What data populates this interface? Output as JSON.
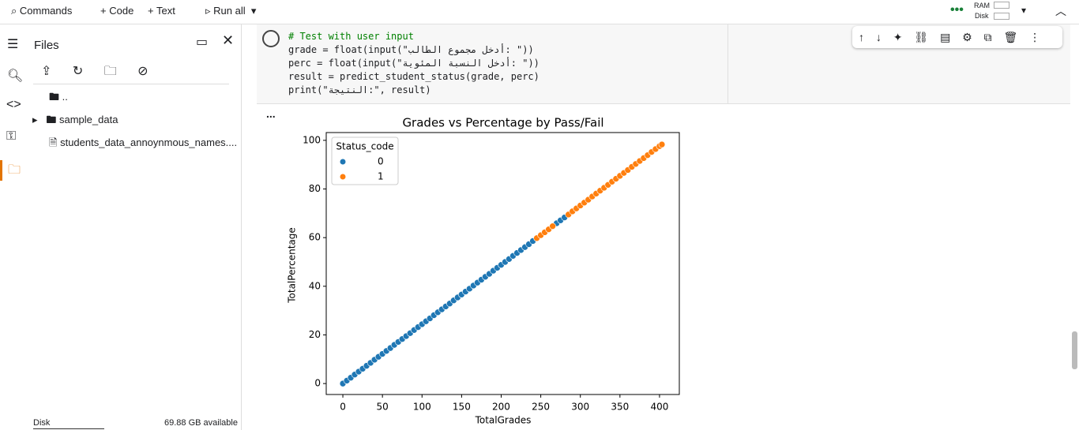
{
  "toolbar": {
    "commands": "Commands",
    "code": "Code",
    "text": "Text",
    "run_all": "Run all",
    "ram": "RAM",
    "disk": "Disk"
  },
  "sidebar": {
    "title": "Files",
    "items": [
      "..",
      "sample_data",
      "students_data_annoynmous_names...."
    ],
    "disk_label": "Disk",
    "disk_available": "69.88 GB available"
  },
  "code": {
    "lines": [
      "# Test with user input",
      "grade = float(input(\"أدخل مجموع الطالب: \"))",
      "perc = float(input(\"أدخل النسبة المئوية: \"))",
      "result = predict_student_status(grade, perc)",
      "print(\"النتيجة:\", result)"
    ]
  },
  "output_menu": "...",
  "chart_data": {
    "type": "scatter",
    "title": "Grades vs Percentage by Pass/Fail",
    "x_label": "TotalGrades",
    "y_label": "TotalPercentage",
    "legend_title": "Status_code",
    "legend_position": "upper left",
    "xlim": [
      -21,
      425
    ],
    "ylim": [
      -4.5,
      103.2
    ],
    "xticks": [
      0,
      50,
      100,
      150,
      200,
      250,
      300,
      350,
      400
    ],
    "yticks": [
      0,
      20,
      40,
      60,
      80,
      100
    ],
    "series": [
      {
        "name": "0",
        "color": "#1f77b4",
        "x": [
          0,
          5,
          10,
          15,
          20,
          25,
          30,
          35,
          40,
          45,
          50,
          55,
          60,
          65,
          70,
          75,
          80,
          85,
          90,
          95,
          100,
          105,
          110,
          115,
          120,
          125,
          130,
          135,
          140,
          145,
          150,
          155,
          160,
          165,
          170,
          175,
          180,
          185,
          190,
          195,
          200,
          205,
          210,
          215,
          220,
          225,
          230,
          235,
          240,
          270,
          275,
          280
        ],
        "values": [
          0,
          1.2,
          2.4,
          3.7,
          4.9,
          6.1,
          7.3,
          8.5,
          9.8,
          11.0,
          12.2,
          13.4,
          14.6,
          15.9,
          17.1,
          18.3,
          19.5,
          20.7,
          22.0,
          23.2,
          24.4,
          25.6,
          26.8,
          28.1,
          29.3,
          30.5,
          31.7,
          32.9,
          34.2,
          35.4,
          36.6,
          37.8,
          39.0,
          40.3,
          41.5,
          42.7,
          43.9,
          45.1,
          46.4,
          47.6,
          48.8,
          50.0,
          51.2,
          52.5,
          53.7,
          54.9,
          56.1,
          57.3,
          58.6,
          65.9,
          67.1,
          68.3
        ]
      },
      {
        "name": "1",
        "color": "#ff7f0e",
        "x": [
          245,
          250,
          255,
          260,
          265,
          285,
          290,
          295,
          300,
          305,
          310,
          315,
          320,
          325,
          330,
          335,
          340,
          345,
          350,
          355,
          360,
          365,
          370,
          375,
          380,
          385,
          390,
          395,
          400,
          403
        ],
        "values": [
          59.8,
          61.0,
          62.2,
          63.4,
          64.7,
          69.5,
          70.8,
          72.0,
          73.2,
          74.4,
          75.6,
          76.9,
          78.1,
          79.3,
          80.5,
          81.7,
          83.0,
          84.2,
          85.4,
          86.6,
          87.8,
          89.1,
          90.3,
          91.5,
          92.7,
          93.9,
          95.2,
          96.4,
          97.6,
          98.3
        ]
      }
    ]
  }
}
